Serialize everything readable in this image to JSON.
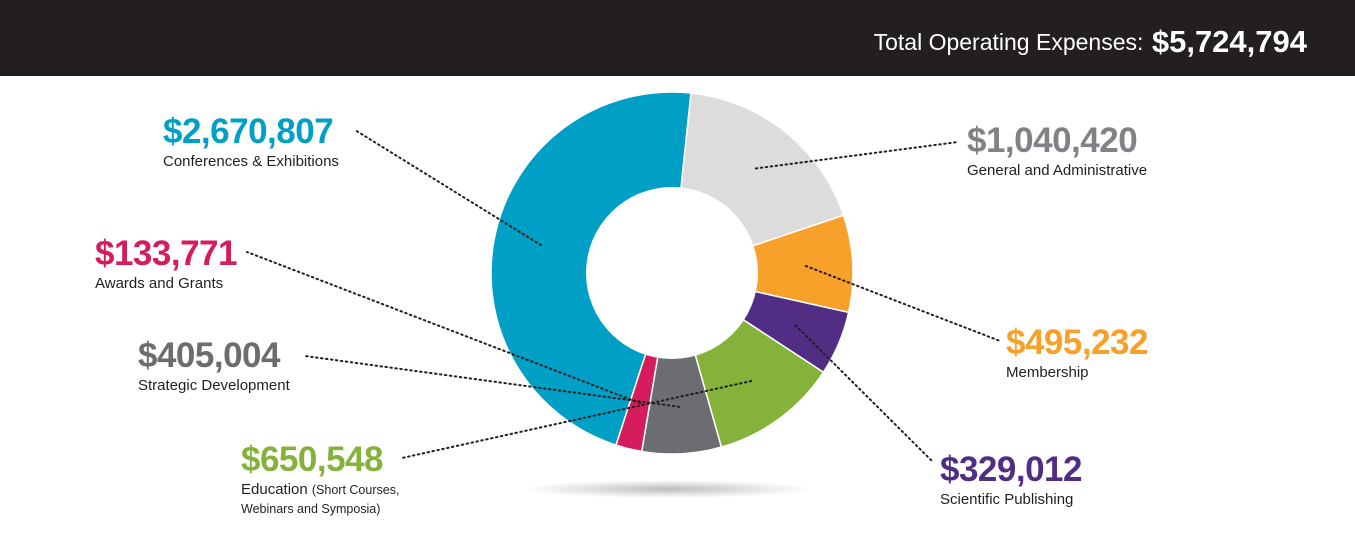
{
  "header": {
    "label": "Total Operating Expenses:",
    "value": "$5,724,794"
  },
  "chart_data": {
    "type": "pie",
    "total": 5724794,
    "slices": [
      {
        "key": "conferences",
        "value": 2670807,
        "amount_text": "$2,670,807",
        "label": "Conferences & Exhibitions",
        "color": "#00a0c6"
      },
      {
        "key": "general",
        "value": 1040420,
        "amount_text": "$1,040,420",
        "label": "General and Administrative",
        "color": "#dcdcdc"
      },
      {
        "key": "membership",
        "value": 495232,
        "amount_text": "$495,232",
        "label": "Membership",
        "color": "#f7a12a"
      },
      {
        "key": "publishing",
        "value": 329012,
        "amount_text": "$329,012",
        "label": "Scientific Publishing",
        "color": "#522d84"
      },
      {
        "key": "education",
        "value": 650548,
        "amount_text": "$650,548",
        "label": "Education",
        "note": "(Short Courses,",
        "label_line2": "Webinars and Symposia)",
        "color": "#84b23a"
      },
      {
        "key": "strategic",
        "value": 405004,
        "amount_text": "$405,004",
        "label": "Strategic Development",
        "color": "#6c6d70"
      },
      {
        "key": "awards",
        "value": 133771,
        "amount_text": "$133,771",
        "label": "Awards and Grants",
        "color": "#d51c5d"
      }
    ],
    "amount_colors": {
      "conferences": "#00a0c6",
      "general": "#808285",
      "membership": "#f7a12a",
      "publishing": "#522d84",
      "education": "#84b23a",
      "strategic": "#6c6d70",
      "awards": "#d51c5d"
    }
  }
}
